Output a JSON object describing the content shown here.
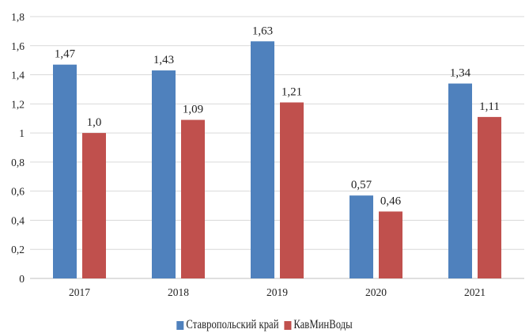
{
  "chart_data": {
    "type": "bar",
    "categories": [
      "2017",
      "2018",
      "2019",
      "2020",
      "2021"
    ],
    "series": [
      {
        "name": "Ставропольский край",
        "color": "#4f81bd",
        "values": [
          1.47,
          1.43,
          1.63,
          0.57,
          1.34
        ],
        "labels": [
          "1,47",
          "1,43",
          "1,63",
          "0,57",
          "1,34"
        ]
      },
      {
        "name": "КавМинВоды",
        "color": "#c0504d",
        "values": [
          1.0,
          1.09,
          1.21,
          0.46,
          1.11
        ],
        "labels": [
          "1,0",
          "1,09",
          "1,21",
          "0,46",
          "1,11"
        ]
      }
    ],
    "ylim": [
      0,
      1.8
    ],
    "yticks": [
      0,
      0.2,
      0.4,
      0.6,
      0.8,
      1,
      1.2,
      1.4,
      1.6,
      1.8
    ],
    "ytick_labels": [
      "0",
      "0,2",
      "0,4",
      "0,6",
      "0,8",
      "1",
      "1,2",
      "1,4",
      "1,6",
      "1,8"
    ],
    "grid": true,
    "legend": "bottom",
    "title": "",
    "xlabel": "",
    "ylabel": ""
  }
}
